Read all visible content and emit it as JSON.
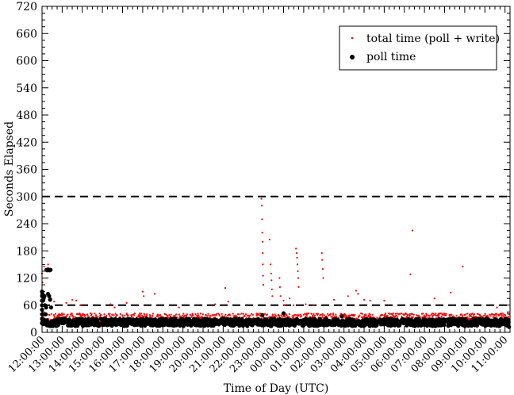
{
  "chart_data": {
    "type": "scatter",
    "xlabel": "Time of Day (UTC)",
    "ylabel": "Seconds Elapsed",
    "xlim": [
      0,
      23.25
    ],
    "ylim": [
      0,
      720
    ],
    "yticks": [
      0,
      60,
      120,
      180,
      240,
      300,
      360,
      420,
      480,
      540,
      600,
      660,
      720
    ],
    "xtick_labels": [
      "12:00:00",
      "13:00:00",
      "14:00:00",
      "15:00:00",
      "16:00:00",
      "17:00:00",
      "18:00:00",
      "19:00:00",
      "20:00:00",
      "21:00:00",
      "22:00:00",
      "23:00:00",
      "00:00:00",
      "01:00:00",
      "02:00:00",
      "03:00:00",
      "04:00:00",
      "05:00:00",
      "06:00:00",
      "07:00:00",
      "08:00:00",
      "09:00:00",
      "10:00:00",
      "11:00:00"
    ],
    "reference_lines": [
      {
        "y": 60,
        "style": "dashed",
        "color": "#000000"
      },
      {
        "y": 300,
        "style": "dashed",
        "color": "#000000"
      }
    ],
    "legend": {
      "position": "top-right"
    },
    "series": [
      {
        "name": "total time (poll + write)",
        "color": "#ff0000",
        "marker": "small-dot",
        "baseline_band": [
          18,
          42
        ],
        "spikes": [
          {
            "x": 0.0,
            "y": 130
          },
          {
            "x": 0.02,
            "y": 110
          },
          {
            "x": 0.05,
            "y": 90
          },
          {
            "x": 0.1,
            "y": 145
          },
          {
            "x": 0.2,
            "y": 140
          },
          {
            "x": 0.3,
            "y": 150
          },
          {
            "x": 0.45,
            "y": 75
          },
          {
            "x": 0.6,
            "y": 68
          },
          {
            "x": 1.2,
            "y": 65
          },
          {
            "x": 1.5,
            "y": 72
          },
          {
            "x": 1.7,
            "y": 70
          },
          {
            "x": 1.9,
            "y": 60
          },
          {
            "x": 3.4,
            "y": 62
          },
          {
            "x": 3.6,
            "y": 55
          },
          {
            "x": 4.2,
            "y": 65
          },
          {
            "x": 5.0,
            "y": 90
          },
          {
            "x": 5.05,
            "y": 80
          },
          {
            "x": 5.6,
            "y": 85
          },
          {
            "x": 6.8,
            "y": 55
          },
          {
            "x": 8.6,
            "y": 62
          },
          {
            "x": 9.1,
            "y": 98
          },
          {
            "x": 9.25,
            "y": 68
          },
          {
            "x": 10.9,
            "y": 295
          },
          {
            "x": 10.92,
            "y": 280
          },
          {
            "x": 10.93,
            "y": 250
          },
          {
            "x": 10.94,
            "y": 220
          },
          {
            "x": 10.95,
            "y": 200
          },
          {
            "x": 10.96,
            "y": 175
          },
          {
            "x": 10.97,
            "y": 150
          },
          {
            "x": 10.98,
            "y": 125
          },
          {
            "x": 10.99,
            "y": 105
          },
          {
            "x": 11.3,
            "y": 205
          },
          {
            "x": 11.35,
            "y": 150
          },
          {
            "x": 11.38,
            "y": 130
          },
          {
            "x": 11.4,
            "y": 115
          },
          {
            "x": 11.42,
            "y": 95
          },
          {
            "x": 11.44,
            "y": 80
          },
          {
            "x": 11.8,
            "y": 120
          },
          {
            "x": 11.82,
            "y": 100
          },
          {
            "x": 11.85,
            "y": 80
          },
          {
            "x": 12.0,
            "y": 70
          },
          {
            "x": 12.05,
            "y": 60
          },
          {
            "x": 12.3,
            "y": 75
          },
          {
            "x": 12.5,
            "y": 60
          },
          {
            "x": 12.62,
            "y": 185
          },
          {
            "x": 12.65,
            "y": 175
          },
          {
            "x": 12.67,
            "y": 165
          },
          {
            "x": 12.69,
            "y": 150
          },
          {
            "x": 12.71,
            "y": 135
          },
          {
            "x": 12.73,
            "y": 120
          },
          {
            "x": 12.75,
            "y": 100
          },
          {
            "x": 13.1,
            "y": 62
          },
          {
            "x": 13.5,
            "y": 60
          },
          {
            "x": 13.9,
            "y": 175
          },
          {
            "x": 13.92,
            "y": 160
          },
          {
            "x": 13.95,
            "y": 140
          },
          {
            "x": 13.97,
            "y": 120
          },
          {
            "x": 14.5,
            "y": 72
          },
          {
            "x": 15.2,
            "y": 80
          },
          {
            "x": 15.6,
            "y": 92
          },
          {
            "x": 15.7,
            "y": 85
          },
          {
            "x": 16.0,
            "y": 72
          },
          {
            "x": 16.3,
            "y": 70
          },
          {
            "x": 17.0,
            "y": 70
          },
          {
            "x": 18.3,
            "y": 128
          },
          {
            "x": 18.4,
            "y": 225
          },
          {
            "x": 19.5,
            "y": 75
          },
          {
            "x": 20.3,
            "y": 88
          },
          {
            "x": 20.9,
            "y": 145
          },
          {
            "x": 22.6,
            "y": 55
          }
        ]
      },
      {
        "name": "poll time",
        "color": "#000000",
        "marker": "dot",
        "baseline_band": [
          14,
          30
        ],
        "spikes": [
          {
            "x": 0.0,
            "y": 20
          },
          {
            "x": 0.0,
            "y": 30
          },
          {
            "x": 0.0,
            "y": 40
          },
          {
            "x": 0.0,
            "y": 50
          },
          {
            "x": 0.0,
            "y": 60
          },
          {
            "x": 0.0,
            "y": 70
          },
          {
            "x": 0.0,
            "y": 80
          },
          {
            "x": 0.0,
            "y": 90
          },
          {
            "x": 0.02,
            "y": 85
          },
          {
            "x": 0.05,
            "y": 70
          },
          {
            "x": 0.08,
            "y": 75
          },
          {
            "x": 0.12,
            "y": 80
          },
          {
            "x": 0.15,
            "y": 60
          },
          {
            "x": 0.18,
            "y": 40
          },
          {
            "x": 0.2,
            "y": 55
          },
          {
            "x": 0.22,
            "y": 138
          },
          {
            "x": 0.26,
            "y": 137
          },
          {
            "x": 0.3,
            "y": 139
          },
          {
            "x": 0.34,
            "y": 138
          },
          {
            "x": 0.38,
            "y": 137
          },
          {
            "x": 0.42,
            "y": 138
          },
          {
            "x": 0.3,
            "y": 85
          },
          {
            "x": 0.35,
            "y": 80
          },
          {
            "x": 0.4,
            "y": 72
          },
          {
            "x": 0.45,
            "y": 55
          },
          {
            "x": 10.95,
            "y": 38
          },
          {
            "x": 12.0,
            "y": 42
          },
          {
            "x": 14.9,
            "y": 35
          },
          {
            "x": 23.1,
            "y": 15
          },
          {
            "x": 23.15,
            "y": 20
          },
          {
            "x": 23.2,
            "y": 12
          }
        ]
      }
    ]
  }
}
